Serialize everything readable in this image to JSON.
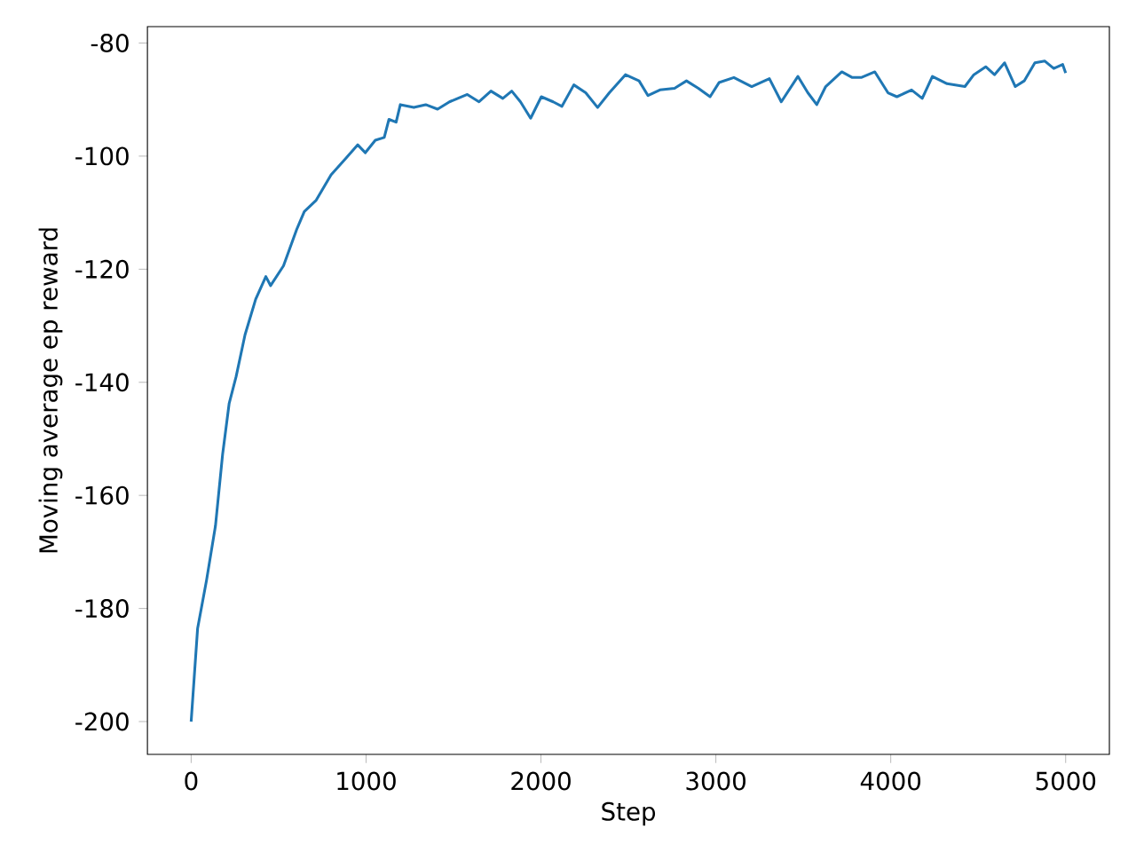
{
  "chart_data": {
    "type": "line",
    "xlabel": "Step",
    "ylabel": "Moving average ep reward",
    "x": [
      0,
      37,
      88,
      139,
      180,
      217,
      257,
      308,
      369,
      427,
      454,
      528,
      603,
      647,
      715,
      800,
      884,
      952,
      996,
      1053,
      1104,
      1131,
      1172,
      1196,
      1273,
      1341,
      1409,
      1477,
      1579,
      1646,
      1714,
      1782,
      1833,
      1883,
      1941,
      2002,
      2070,
      2120,
      2188,
      2256,
      2324,
      2391,
      2483,
      2561,
      2612,
      2680,
      2764,
      2832,
      2900,
      2967,
      3018,
      3103,
      3205,
      3306,
      3374,
      3469,
      3526,
      3577,
      3628,
      3720,
      3780,
      3831,
      3909,
      3984,
      4035,
      4119,
      4180,
      4238,
      4322,
      4424,
      4475,
      4543,
      4593,
      4651,
      4712,
      4763,
      4824,
      4881,
      4932,
      4983,
      5000
    ],
    "series": [
      {
        "color": "#1f77b4",
        "values": [
          -200,
          -183.5,
          -175,
          -165.4,
          -152.7,
          -143.8,
          -139,
          -131.6,
          -125.3,
          -121.3,
          -122.9,
          -119.4,
          -113,
          -109.8,
          -107.8,
          -103.3,
          -100.4,
          -98,
          -99.4,
          -97.2,
          -96.7,
          -93.5,
          -94,
          -90.9,
          -91.4,
          -90.9,
          -91.7,
          -90.4,
          -89.1,
          -90.4,
          -88.5,
          -89.8,
          -88.5,
          -90.4,
          -93.3,
          -89.5,
          -90.4,
          -91.2,
          -87.4,
          -88.8,
          -91.4,
          -88.8,
          -85.6,
          -86.7,
          -89.3,
          -88.3,
          -88,
          -86.7,
          -88,
          -89.5,
          -87,
          -86.1,
          -87.7,
          -86.3,
          -90.4,
          -85.9,
          -88.8,
          -90.9,
          -87.7,
          -85.1,
          -86.1,
          -86.1,
          -85.1,
          -88.8,
          -89.5,
          -88.3,
          -89.8,
          -85.9,
          -87.2,
          -87.7,
          -85.6,
          -84.2,
          -85.6,
          -83.5,
          -87.7,
          -86.7,
          -83.5,
          -83.2,
          -84.5,
          -83.8,
          -85.3
        ]
      }
    ],
    "xlim": [
      -250,
      5250
    ],
    "ylim": [
      -205.8,
      -77.1
    ],
    "xticks": [
      0,
      1000,
      2000,
      3000,
      4000,
      5000
    ],
    "yticks": [
      -200,
      -180,
      -160,
      -140,
      -120,
      -100,
      -80
    ],
    "marker": "none",
    "line_style": "solid"
  }
}
